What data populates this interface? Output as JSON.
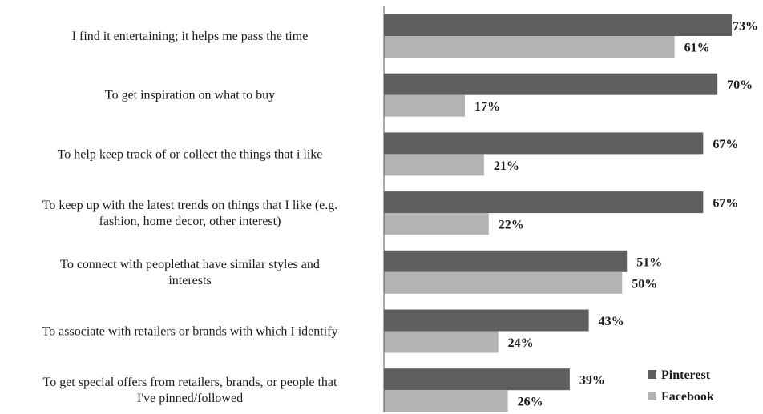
{
  "chart_data": {
    "type": "bar",
    "orientation": "horizontal",
    "categories": [
      [
        "I find it entertaining; it helps me pass the time"
      ],
      [
        "To get inspiration on what to buy"
      ],
      [
        "To help keep track of or collect the things that i like"
      ],
      [
        "To keep up with the latest trends on things that I like (e.g.",
        "fashion, home decor, other interest)"
      ],
      [
        "To connect with peoplethat have similar styles and",
        "interests"
      ],
      [
        "To associate with retailers or brands with which I identify"
      ],
      [
        "To get special offers from retailers, brands, or people that",
        "I've pinned/followed"
      ]
    ],
    "series": [
      {
        "name": "Pinterest",
        "color": "#5f5f5f",
        "values": [
          73,
          70,
          67,
          67,
          51,
          43,
          39
        ]
      },
      {
        "name": "Facebook",
        "color": "#b3b3b3",
        "values": [
          61,
          17,
          21,
          22,
          50,
          24,
          26
        ]
      }
    ],
    "value_suffix": "%",
    "xlim": [
      0,
      73
    ],
    "grid": false,
    "legend": "bottom-right"
  }
}
